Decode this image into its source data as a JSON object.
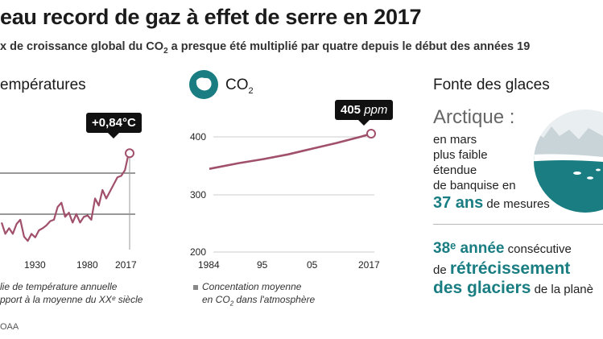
{
  "title": "eau record de gaz à effet de serre en 2017",
  "subtitle_pre": "x de croissance global du CO",
  "subtitle_sub": "2",
  "subtitle_post": " a presque été multiplié par quatre depuis le début des années 19",
  "temperature": {
    "heading": "empératures",
    "callout": "+0,84°C",
    "legend_line1": "lie de température annuelle",
    "legend_line2": "pport à la moyenne du XXᵉ siècle",
    "source": "OAA"
  },
  "co2": {
    "heading_main": "CO",
    "heading_sub": "2",
    "callout_value": "405",
    "callout_unit": "ppm",
    "legend_line1": "Concentation moyenne",
    "legend_line2_pre": "en CO",
    "legend_line2_sub": "2",
    "legend_line2_post": " dans l'atmosphère"
  },
  "glaciers": {
    "heading": "Fonte des glaces",
    "arctic_title": "Arctique :",
    "arctic_lines": [
      "en mars",
      "plus faible",
      "étendue",
      "de banquise en"
    ],
    "arctic_years_bold": "37 ans",
    "arctic_years_rest": " de mesures",
    "glacier_bold1": "38ᵉ année",
    "glacier_rest1": " consécutive",
    "glacier_pre2": "de ",
    "glacier_bold2": "rétrécissement",
    "glacier_bold3": "des glaciers",
    "glacier_rest3": " de la planè"
  },
  "colors": {
    "line": "#a0506a",
    "teal": "#197d82",
    "grid": "#333333"
  },
  "chart_data": [
    {
      "type": "line",
      "title": "Températures",
      "xlabel": "",
      "ylabel": "Anomalie de température annuelle (°C)",
      "x_ticks": [
        "1930",
        "1980",
        "2017"
      ],
      "xlim": [
        1880,
        2017
      ],
      "ylim": [
        -0.5,
        0.9
      ],
      "reference_lines": [
        0.0,
        0.5
      ],
      "annotation": "+0,84°C",
      "series": [
        {
          "name": "Anomalie de température annuelle",
          "x": [
            1880,
            1884,
            1888,
            1892,
            1896,
            1900,
            1904,
            1908,
            1912,
            1916,
            1920,
            1924,
            1928,
            1932,
            1936,
            1940,
            1944,
            1948,
            1952,
            1956,
            1960,
            1964,
            1968,
            1972,
            1976,
            1980,
            1984,
            1988,
            1992,
            1996,
            2000,
            2004,
            2008,
            2012,
            2015,
            2017
          ],
          "values": [
            -0.14,
            -0.3,
            -0.22,
            -0.3,
            -0.16,
            -0.1,
            -0.34,
            -0.4,
            -0.3,
            -0.35,
            -0.25,
            -0.22,
            -0.18,
            -0.12,
            -0.1,
            0.08,
            0.14,
            -0.06,
            0.0,
            -0.14,
            -0.02,
            -0.14,
            -0.06,
            -0.04,
            -0.1,
            0.2,
            0.1,
            0.32,
            0.2,
            0.3,
            0.4,
            0.5,
            0.52,
            0.6,
            0.78,
            0.84
          ]
        }
      ]
    },
    {
      "type": "line",
      "title": "CO2",
      "xlabel": "",
      "ylabel": "ppm",
      "x_ticks": [
        "1984",
        "95",
        "05",
        "2017"
      ],
      "y_ticks": [
        200,
        300,
        400
      ],
      "xlim": [
        1984,
        2017
      ],
      "ylim": [
        200,
        405
      ],
      "annotation": "405 ppm",
      "series": [
        {
          "name": "Concentation moyenne en CO2 dans l'atmosphère",
          "x": [
            1984,
            1990,
            1995,
            2000,
            2005,
            2010,
            2015,
            2017
          ],
          "values": [
            344,
            354,
            361,
            369,
            379,
            389,
            400,
            405
          ]
        }
      ]
    }
  ]
}
